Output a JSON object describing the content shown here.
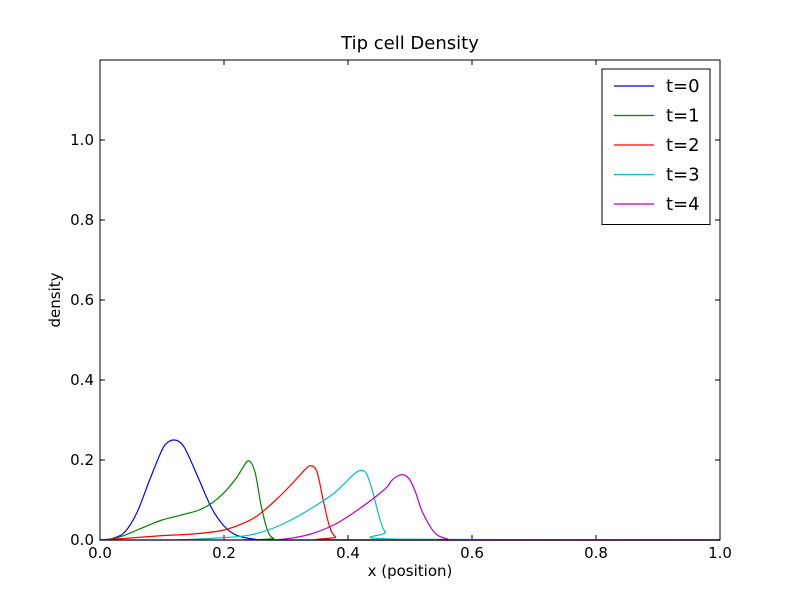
{
  "chart_data": {
    "type": "line",
    "title": "Tip cell Density",
    "xlabel": "x (position)",
    "ylabel": "density",
    "xlim": [
      0.0,
      1.0
    ],
    "ylim": [
      0.0,
      1.2
    ],
    "xticks": [
      "0.0",
      "0.2",
      "0.4",
      "0.6",
      "0.8",
      "1.0"
    ],
    "yticks": [
      "0.0",
      "0.2",
      "0.4",
      "0.6",
      "0.8",
      "1.0"
    ],
    "grid": false,
    "legend": "top-right",
    "series": [
      {
        "name": "t=0",
        "color": "#0000ff",
        "x": [
          0.0,
          0.02,
          0.04,
          0.06,
          0.08,
          0.1,
          0.11,
          0.12,
          0.13,
          0.14,
          0.16,
          0.18,
          0.2,
          0.22,
          0.25,
          0.3,
          1.0
        ],
        "y": [
          0.0,
          0.004,
          0.02,
          0.07,
          0.15,
          0.225,
          0.245,
          0.25,
          0.243,
          0.22,
          0.15,
          0.08,
          0.035,
          0.012,
          0.002,
          0.0,
          0.0
        ]
      },
      {
        "name": "t=1",
        "color": "#008000",
        "x": [
          0.0,
          0.02,
          0.04,
          0.06,
          0.08,
          0.1,
          0.12,
          0.14,
          0.16,
          0.18,
          0.2,
          0.22,
          0.23,
          0.24,
          0.25,
          0.26,
          0.27,
          0.28,
          0.3,
          1.0
        ],
        "y": [
          0.0,
          0.003,
          0.012,
          0.025,
          0.038,
          0.05,
          0.058,
          0.066,
          0.075,
          0.092,
          0.118,
          0.155,
          0.18,
          0.198,
          0.17,
          0.085,
          0.025,
          0.004,
          0.0,
          0.0
        ]
      },
      {
        "name": "t=2",
        "color": "#ff0000",
        "x": [
          0.0,
          0.05,
          0.1,
          0.15,
          0.2,
          0.24,
          0.26,
          0.28,
          0.3,
          0.32,
          0.33,
          0.34,
          0.35,
          0.36,
          0.37,
          0.38,
          0.4,
          1.0
        ],
        "y": [
          0.0,
          0.005,
          0.011,
          0.015,
          0.025,
          0.048,
          0.068,
          0.095,
          0.125,
          0.158,
          0.175,
          0.186,
          0.17,
          0.1,
          0.035,
          0.008,
          0.0,
          0.0
        ]
      },
      {
        "name": "t=3",
        "color": "#00bfbf",
        "x": [
          0.0,
          0.1,
          0.15,
          0.2,
          0.24,
          0.28,
          0.32,
          0.36,
          0.38,
          0.4,
          0.41,
          0.42,
          0.43,
          0.44,
          0.45,
          0.46,
          0.48,
          1.0
        ],
        "y": [
          0.0,
          0.0,
          0.002,
          0.006,
          0.012,
          0.03,
          0.06,
          0.098,
          0.12,
          0.15,
          0.165,
          0.174,
          0.165,
          0.12,
          0.06,
          0.02,
          0.002,
          0.0
        ]
      },
      {
        "name": "t=4",
        "color": "#bf00bf",
        "x": [
          0.0,
          0.25,
          0.3,
          0.34,
          0.38,
          0.42,
          0.46,
          0.47,
          0.48,
          0.49,
          0.5,
          0.51,
          0.52,
          0.54,
          0.56,
          0.58,
          1.0
        ],
        "y": [
          0.0,
          0.0,
          0.003,
          0.015,
          0.04,
          0.08,
          0.128,
          0.148,
          0.16,
          0.163,
          0.15,
          0.115,
          0.07,
          0.018,
          0.003,
          0.0,
          0.0
        ]
      }
    ]
  }
}
